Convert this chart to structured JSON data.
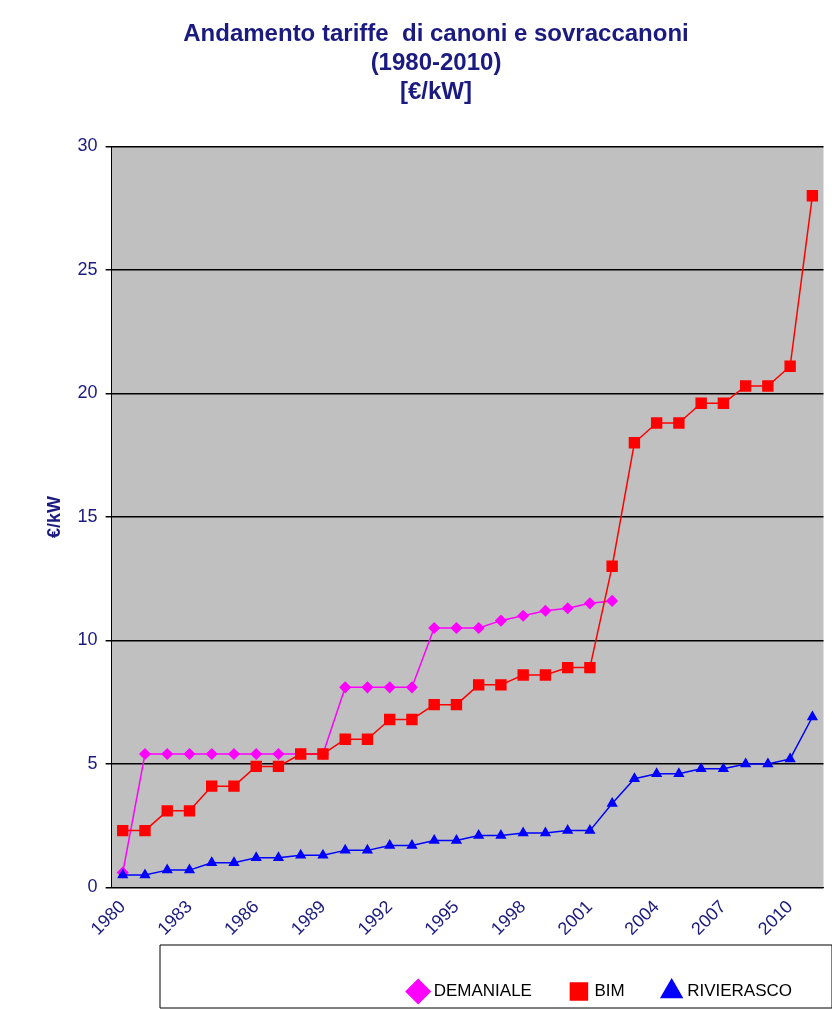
{
  "chart_data": {
    "type": "line",
    "title": [
      "Andamento tariffe  di canoni e sovraccanoni",
      "(1980-2010)",
      "[€/kW]"
    ],
    "ylabel": "€/kW",
    "categories": [
      "1980",
      null,
      null,
      "1983",
      null,
      null,
      "1986",
      null,
      null,
      "1989",
      null,
      null,
      "1992",
      null,
      null,
      "1995",
      null,
      null,
      "1998",
      null,
      null,
      "2001",
      null,
      null,
      "2004",
      null,
      null,
      "2007",
      null,
      null,
      "2010",
      null
    ],
    "series": [
      {
        "name": "DEMANIALE",
        "color": "#ff00ff",
        "marker": "diamond",
        "values": [
          0.6,
          5.4,
          5.4,
          5.4,
          5.4,
          5.4,
          5.4,
          5.4,
          5.4,
          5.4,
          8.1,
          8.1,
          8.1,
          8.1,
          10.5,
          10.5,
          10.5,
          10.8,
          11.0,
          11.2,
          11.3,
          11.5,
          11.6,
          null,
          null,
          null,
          null,
          null,
          null,
          null,
          null,
          null
        ]
      },
      {
        "name": "BIM",
        "color": "#ff0000",
        "marker": "square",
        "values": [
          2.3,
          2.3,
          3.1,
          3.1,
          4.1,
          4.1,
          4.9,
          4.9,
          5.4,
          5.4,
          6.0,
          6.0,
          6.8,
          6.8,
          7.4,
          7.4,
          8.2,
          8.2,
          8.6,
          8.6,
          8.9,
          8.9,
          13.0,
          18.0,
          18.8,
          18.8,
          19.6,
          19.6,
          20.3,
          20.3,
          21.1,
          28.0
        ]
      },
      {
        "name": "RIVIERASCO",
        "color": "#0000ff",
        "marker": "triangle",
        "values": [
          0.5,
          0.5,
          0.7,
          0.7,
          1.0,
          1.0,
          1.2,
          1.2,
          1.3,
          1.3,
          1.5,
          1.5,
          1.7,
          1.7,
          1.9,
          1.9,
          2.1,
          2.1,
          2.2,
          2.2,
          2.3,
          2.3,
          3.4,
          4.4,
          4.6,
          4.6,
          4.8,
          4.8,
          5.0,
          5.0,
          5.2,
          6.9
        ]
      }
    ],
    "ylim": [
      0,
      30
    ],
    "yticks": [
      0,
      5,
      10,
      15,
      20,
      25,
      30
    ],
    "grid": "y",
    "legend": "bottom",
    "line_style": "solid"
  }
}
